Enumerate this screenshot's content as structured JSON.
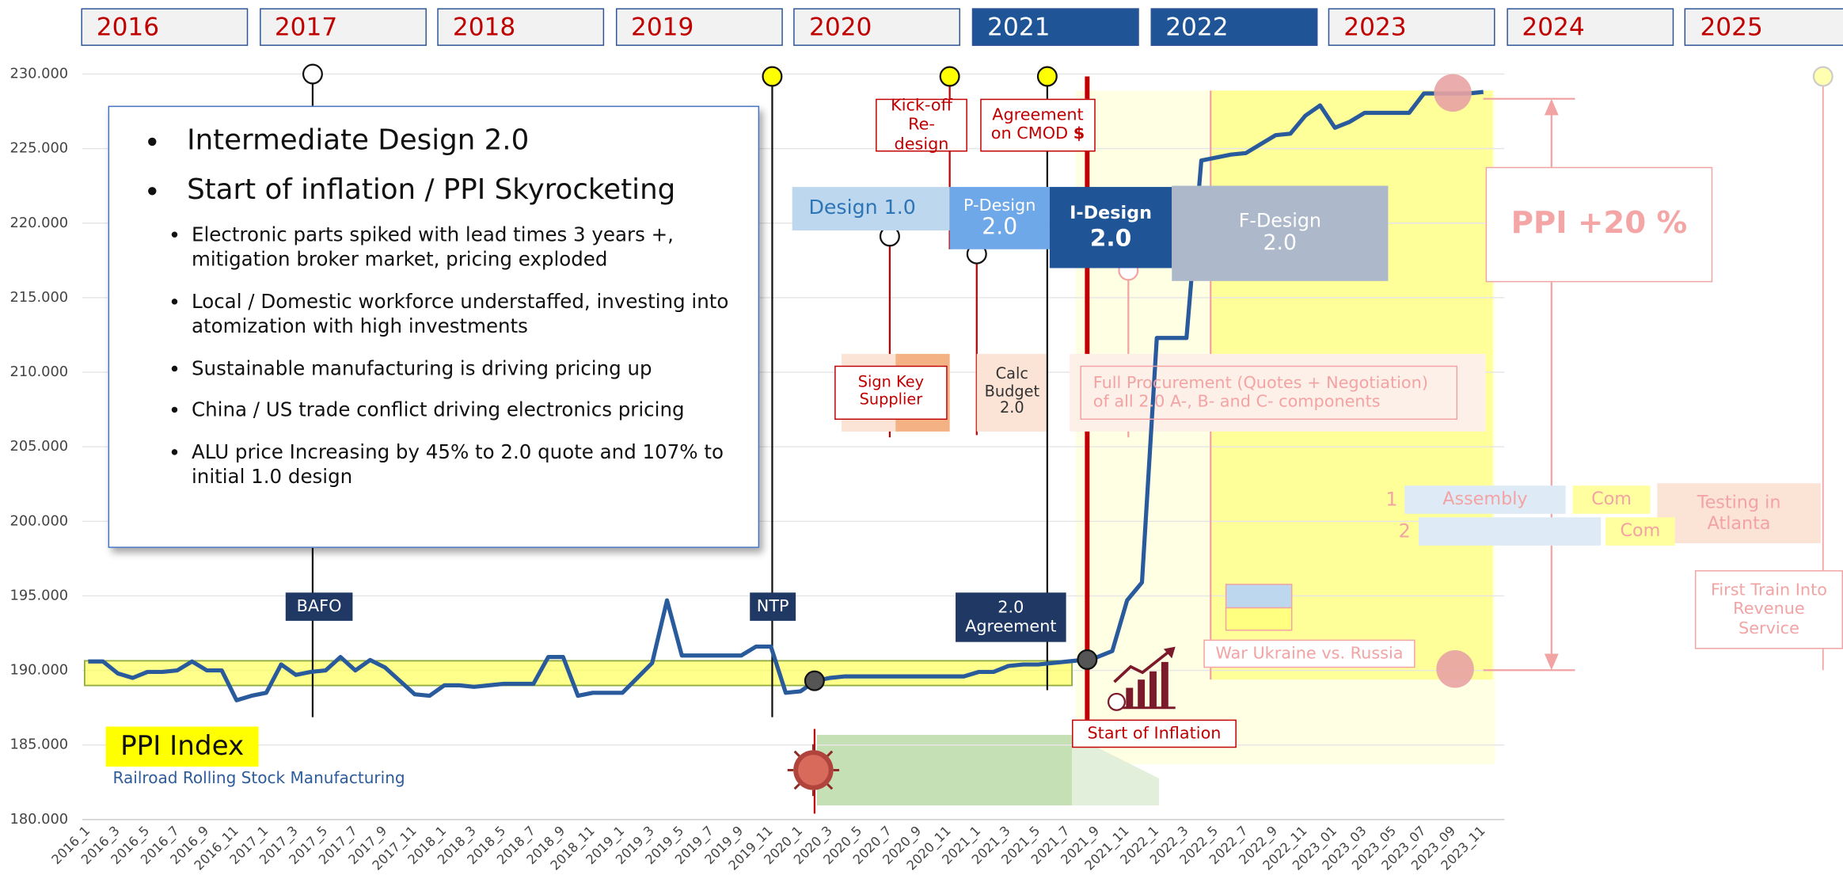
{
  "chart_data": {
    "type": "line",
    "subtitle": "Railroad Rolling Stock Manufacturing",
    "categories": [
      "2016_1",
      null,
      "2016_3",
      null,
      "2016_5",
      null,
      "2016_7",
      null,
      "2016_9",
      null,
      "2016_11",
      null,
      "2017_1",
      null,
      "2017_3",
      null,
      "2017_5",
      null,
      "2017_7",
      null,
      "2017_9",
      null,
      "2017_11",
      null,
      "2018_1",
      null,
      "2018_3",
      null,
      "2018_5",
      null,
      "2018_7",
      null,
      "2018_9",
      null,
      "2018_11",
      null,
      "2019_1",
      null,
      "2019_3",
      null,
      "2019_5",
      null,
      "2019_7",
      null,
      "2019_9",
      null,
      "2019_11",
      null,
      "2020_1",
      null,
      "2020_3",
      null,
      "2020_5",
      null,
      "2020_7",
      null,
      "2020_9",
      null,
      "2020_11",
      null,
      "2021_1",
      null,
      "2021_3",
      null,
      "2021_5",
      null,
      "2021_7",
      null,
      "2021_9",
      null,
      "2021_11",
      null,
      "2022_1",
      null,
      "2022_3",
      null,
      "2022_5",
      null,
      "2022_7",
      null,
      "2022_9",
      null,
      "2022_11",
      null,
      "2023_01",
      null,
      "2023_03",
      null,
      "2023_05",
      null,
      "2023_07",
      null,
      "2023_09",
      null,
      "2023_11"
    ],
    "series": [
      {
        "name": "PPI Index",
        "color": "#285a9c",
        "values": [
          190.6,
          190.6,
          189.8,
          189.5,
          189.9,
          189.9,
          190.0,
          190.6,
          190.0,
          190.0,
          188.0,
          188.3,
          188.5,
          190.4,
          189.7,
          189.9,
          190.0,
          190.9,
          190.0,
          190.7,
          190.2,
          189.3,
          188.4,
          188.3,
          189.0,
          189.0,
          188.9,
          189.0,
          189.1,
          189.1,
          189.1,
          190.9,
          190.9,
          188.3,
          188.5,
          188.5,
          188.5,
          189.5,
          190.5,
          194.7,
          191.0,
          191.0,
          191.0,
          191.0,
          191.0,
          191.6,
          191.6,
          188.5,
          188.6,
          189.3,
          189.5,
          189.6,
          189.6,
          189.6,
          189.6,
          189.6,
          189.6,
          189.6,
          189.6,
          189.6,
          189.9,
          189.9,
          190.3,
          190.4,
          190.4,
          190.5,
          190.6,
          190.7,
          190.9,
          191.3,
          194.7,
          195.9,
          212.3,
          212.3,
          212.3,
          224.2,
          224.4,
          224.6,
          224.7,
          225.3,
          225.9,
          226.0,
          227.2,
          227.9,
          226.4,
          226.8,
          227.4,
          227.4,
          227.4,
          227.4,
          228.7,
          228.7,
          228.7,
          228.7,
          228.8
        ]
      }
    ],
    "ylim": [
      180,
      230
    ],
    "yticks": [
      {
        "value": 180,
        "label": "180.000"
      },
      {
        "value": 185,
        "label": "185.000"
      },
      {
        "value": 190,
        "label": "190.000"
      },
      {
        "value": 195,
        "label": "195.000"
      },
      {
        "value": 200,
        "label": "200.000"
      },
      {
        "value": 205,
        "label": "205.000"
      },
      {
        "value": 210,
        "label": "210.000"
      },
      {
        "value": 215,
        "label": "215.000"
      },
      {
        "value": 220,
        "label": "220.000"
      },
      {
        "value": 225,
        "label": "225.000"
      },
      {
        "value": 230,
        "label": "230.000"
      }
    ],
    "grid": true
  },
  "timeline": [
    {
      "label": "2016",
      "active": false
    },
    {
      "label": "2017",
      "active": false
    },
    {
      "label": "2018",
      "active": false
    },
    {
      "label": "2019",
      "active": false
    },
    {
      "label": "2020",
      "active": false
    },
    {
      "label": "2021",
      "active": true
    },
    {
      "label": "2022",
      "active": true
    },
    {
      "label": "2023",
      "active": false
    },
    {
      "label": "2024",
      "active": false
    },
    {
      "label": "2025",
      "active": false
    }
  ],
  "callout": {
    "main": [
      "Intermediate Design 2.0",
      "Start of inflation / PPI Skyrocketing"
    ],
    "points": [
      "Electronic parts spiked with lead times 3 years +, mitigation broker market, pricing exploded",
      "Local / Domestic workforce understaffed, investing into atomization with high investments",
      "Sustainable manufacturing is driving pricing up",
      "China / US trade conflict driving electronics pricing",
      "ALU price Increasing by 45% to 2.0 quote and 107% to initial 1.0 design"
    ]
  },
  "milestones": {
    "bafo": "BAFO",
    "ntp": "NTP",
    "agreement": "2.0 Agreement"
  },
  "events": {
    "kickoff": "Kick-off Re-design",
    "cmod": "Agreement on CMOD",
    "cmod_mark": "$",
    "sign": "Sign Key Supplier",
    "budget": "Calc Budget 2.0",
    "procurement": "Full Procurement (Quotes + Negotiation) of all 2.0 A-, B- and C- components",
    "inflation": "Start of Inflation",
    "war": "War Ukraine vs. Russia",
    "first_train": "First Train Into Revenue Service",
    "ppi_change": "PPI +20 %"
  },
  "phases": [
    {
      "name": "Design 1.0"
    },
    {
      "name": "P-Design",
      "version": "2.0"
    },
    {
      "name": "I-Design",
      "version": "2.0"
    },
    {
      "name": "F-Design",
      "version": "2.0"
    }
  ],
  "tracks": {
    "row1": "1",
    "assembly": "Assembly",
    "com1": "Com",
    "testing": "Testing in Atlanta",
    "row2": "2",
    "com2": "Com"
  }
}
